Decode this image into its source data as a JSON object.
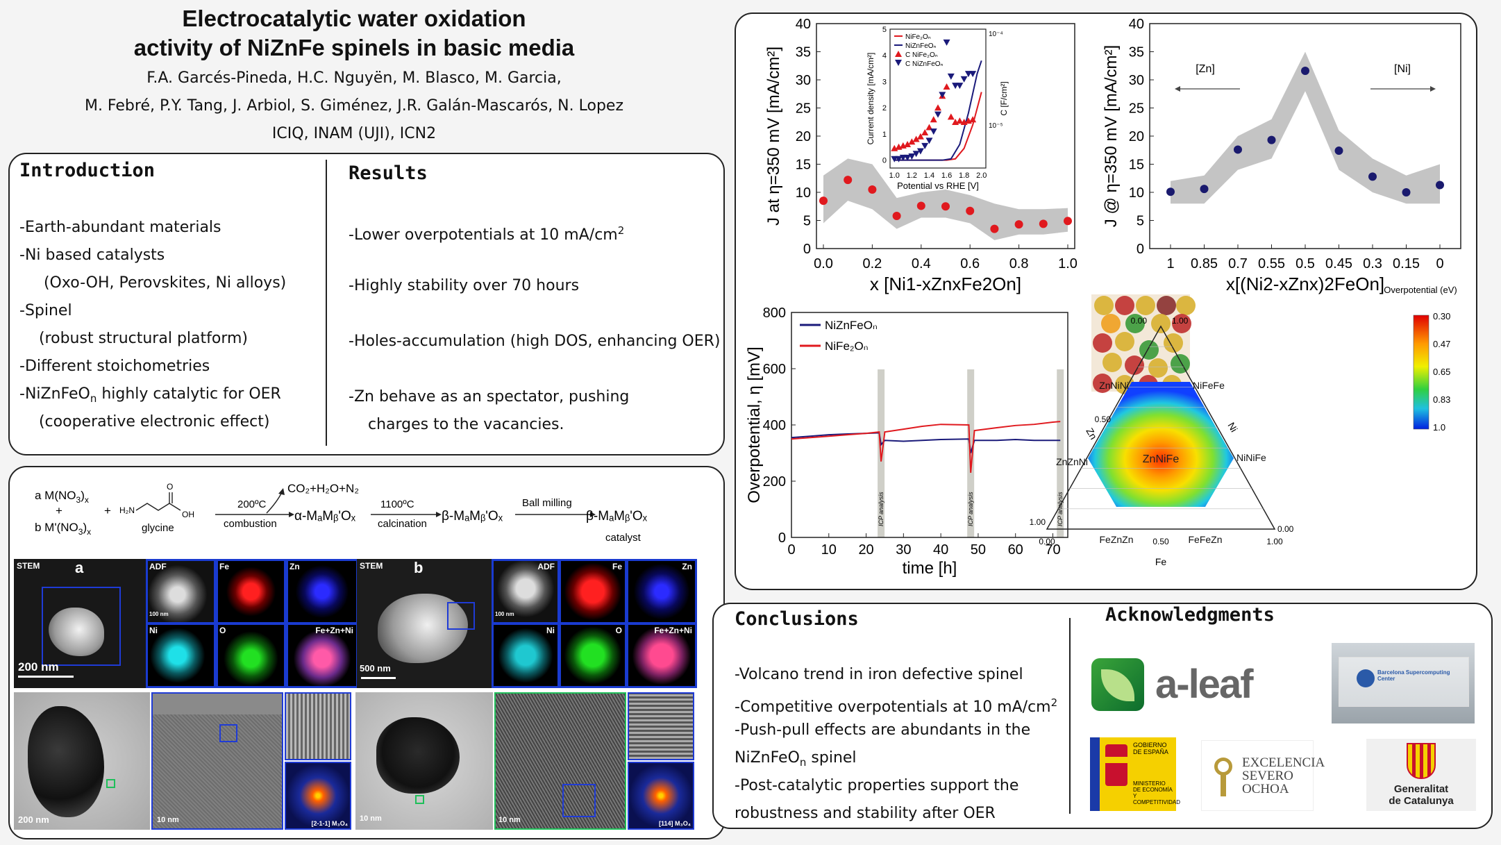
{
  "title": {
    "line1": "Electrocatalytic water oxidation",
    "line2": "activity of NiZnFe spinels in basic media"
  },
  "authors": {
    "line1": "F.A. Garcés-Pineda, H.C. Nguyën, M. Blasco, M. Garcia,",
    "line2": "M. Febré, P.Y. Tang, J. Arbiol, S. Giménez, J.R. Galán-Mascarós, N. Lopez",
    "line3": "ICIQ, INAM (UJI), ICN2"
  },
  "introduction": {
    "heading": "Introduction",
    "items": [
      "-Earth-abundant materials",
      "-Ni based catalysts",
      "     (Oxo-OH, Perovskites, Ni alloys)",
      "-Spinel",
      "    (robust structural platform)",
      "-Different stoichometries"
    ],
    "nizn_prefix": "-NiZnFeO",
    "nizn_sub": "n",
    "nizn_suffix": " highly catalytic for OER",
    "last": "    (cooperative electronic effect)"
  },
  "results": {
    "heading": "Results",
    "item1": "-Lower overpotentials at 10 mA/cm",
    "item1_sup": "2",
    "item2": "-Highly stability over 70 hours",
    "item3": "-Holes-accumulation (high DOS, enhancing OER)",
    "item4a": "-Zn behave as an spectator, pushing",
    "item4b": "    charges to the vacancies."
  },
  "synthesis": {
    "reagent_a": "a M(NO",
    "reagent_b": "b M'(NO",
    "plus": "+",
    "x": "x",
    "three": "3",
    "glycine": "glycine",
    "gly_h2n": "H₂N",
    "gly_oh": "OH",
    "gly_o": "O",
    "temp1": "200ºC",
    "step1": "combustion",
    "products": "CO₂+H₂O+N₂",
    "alpha": "α-MₐMᵦ'Oₓ",
    "temp2": "1100ºC",
    "step2": "calcination",
    "beta1": "β-MₐMᵦ'Oₓ",
    "step3": "Ball milling",
    "beta2": "β-MₐMᵦ'Oₓ",
    "catalyst": "catalyst"
  },
  "microscopy": {
    "stem": "STEM",
    "panel_a": "a",
    "panel_b": "b",
    "adf": "ADF",
    "fe": "Fe",
    "zn": "Zn",
    "ni": "Ni",
    "o": "O",
    "mix": "Fe+Zn+Ni",
    "scale_200": "200 nm",
    "scale_500": "500 nm",
    "scale_100": "100 nm",
    "scale_10": "10 nm",
    "fft_a": "[2-1-1] M₃O₄",
    "fft_b": "[114] M₃O₄"
  },
  "chart_data": [
    {
      "type": "scatter",
      "ylabel": "J at η=350 mV [mA/cm²]",
      "xlabel": "x [Ni1-xZnxFe2On]",
      "xlim": [
        0,
        1
      ],
      "ylim": [
        0,
        40
      ],
      "xticks": [
        "0.0",
        "0.2",
        "0.4",
        "0.6",
        "0.8",
        "1.0"
      ],
      "yticks": [
        "0",
        "5",
        "10",
        "15",
        "20",
        "25",
        "30",
        "35",
        "40"
      ],
      "x": [
        0.0,
        0.1,
        0.2,
        0.3,
        0.4,
        0.5,
        0.6,
        0.7,
        0.8,
        0.9,
        1.0
      ],
      "y": [
        8.5,
        12.2,
        10.5,
        5.8,
        7.6,
        7.5,
        6.7,
        3.5,
        4.3,
        4.4,
        4.9
      ],
      "color": "#e0191e"
    },
    {
      "type": "line",
      "inset": true,
      "xlabel": "Potential vs RHE [V]",
      "ylabel": "Current density [mA/cm²]",
      "ylabel_right": "C [F/cm²]",
      "xlim": [
        0.95,
        2.05
      ],
      "ylim": [
        -0.3,
        5
      ],
      "xticks": [
        "1.0",
        "1.2",
        "1.4",
        "1.6",
        "1.8",
        "2.0"
      ],
      "yticks": [
        "0",
        "1",
        "2",
        "3",
        "4",
        "5"
      ],
      "right_ticks": [
        "10⁻⁴",
        "10⁻⁵"
      ],
      "legend": [
        "NiFe₂Oₙ",
        "NiZnFeOₙ",
        "C NiFe₂Oₙ",
        "C NiZnFeOₙ"
      ],
      "series": [
        {
          "name": "NiFe₂Oₙ",
          "color": "#e0191e",
          "x": [
            1.0,
            1.6,
            1.7,
            1.8,
            1.9,
            2.0
          ],
          "y": [
            0,
            0,
            0.05,
            0.45,
            1.35,
            2.6
          ]
        },
        {
          "name": "NiZnFeOₙ",
          "color": "#1a1a7a",
          "x": [
            1.0,
            1.55,
            1.65,
            1.75,
            1.85,
            1.95,
            2.0
          ],
          "y": [
            0,
            0,
            0.05,
            0.6,
            1.8,
            3.3,
            3.8
          ]
        },
        {
          "name": "C NiFe₂Oₙ",
          "color": "#e0191e",
          "x": [
            1.0,
            1.05,
            1.1,
            1.15,
            1.2,
            1.25,
            1.3,
            1.35,
            1.4,
            1.45,
            1.5,
            1.55,
            1.6,
            1.65,
            1.7,
            1.75,
            1.8,
            1.85,
            1.9
          ],
          "y": [
            0.45,
            0.5,
            0.55,
            0.6,
            0.7,
            0.8,
            0.9,
            1.05,
            1.25,
            1.55,
            2.0,
            2.45,
            2.8,
            1.65,
            1.45,
            1.5,
            1.45,
            1.5,
            1.55
          ]
        },
        {
          "name": "C NiZnFeOₙ",
          "color": "#1a1a7a",
          "x": [
            1.0,
            1.05,
            1.1,
            1.15,
            1.2,
            1.25,
            1.3,
            1.35,
            1.4,
            1.45,
            1.5,
            1.55,
            1.6,
            1.65,
            1.7,
            1.75,
            1.8,
            1.85,
            1.9
          ],
          "y": [
            0.05,
            0.05,
            0.1,
            0.1,
            0.15,
            0.25,
            0.35,
            0.55,
            0.75,
            1.1,
            1.75,
            2.5,
            4.5,
            3.2,
            2.85,
            2.85,
            3.1,
            3.3,
            3.3
          ]
        }
      ]
    },
    {
      "type": "scatter",
      "ylabel": "J @ η=350 mV [mA/cm²]",
      "xlabel": "x[(Ni2-xZnx)2FeOn]",
      "ylim": [
        0,
        40
      ],
      "categories": [
        "1",
        "0.85",
        "0.7",
        "0.55",
        "0.5",
        "0.45",
        "0.3",
        "0.15",
        "0"
      ],
      "yticks": [
        "0",
        "5",
        "10",
        "15",
        "20",
        "25",
        "30",
        "35",
        "40"
      ],
      "values": [
        10.1,
        10.6,
        17.6,
        19.3,
        31.6,
        17.4,
        12.8,
        10.0,
        11.3
      ],
      "annotations": [
        "[Zn]",
        "[Ni]"
      ],
      "color": "#1a1a6e"
    },
    {
      "type": "line",
      "xlabel": "time [h]",
      "ylabel": "Overpotential, η [mV]",
      "xlim": [
        0,
        74
      ],
      "ylim": [
        0,
        800
      ],
      "xticks": [
        "0",
        "10",
        "20",
        "30",
        "40",
        "50",
        "60",
        "70"
      ],
      "yticks": [
        "0",
        "200",
        "400",
        "600",
        "800"
      ],
      "annotation": "ICP analysis",
      "legend": [
        "NiZnFeOₙ",
        "NiFe₂Oₙ"
      ],
      "series": [
        {
          "name": "NiZnFeOₙ",
          "color": "#1a1a7a",
          "x": [
            0,
            5,
            10,
            15,
            20,
            23.5,
            24,
            25,
            30,
            35,
            40,
            47.5,
            48,
            49,
            55,
            60,
            65,
            70,
            72
          ],
          "y": [
            355,
            360,
            365,
            368,
            370,
            372,
            330,
            345,
            342,
            345,
            348,
            350,
            300,
            345,
            345,
            348,
            345,
            345,
            345
          ]
        },
        {
          "name": "NiFe₂Oₙ",
          "color": "#e0191e",
          "x": [
            0,
            5,
            10,
            15,
            20,
            23.5,
            24,
            25,
            30,
            35,
            40,
            47.5,
            48,
            49,
            55,
            60,
            65,
            70,
            72
          ],
          "y": [
            350,
            355,
            360,
            365,
            370,
            375,
            270,
            375,
            385,
            395,
            402,
            400,
            230,
            380,
            390,
            398,
            402,
            410,
            412
          ]
        }
      ]
    },
    {
      "type": "heatmap",
      "title": "Overpotential (eV)",
      "colorbar_ticks": [
        "0.30",
        "0.47",
        "0.65",
        "0.83",
        "1.0"
      ],
      "corner_labels": [
        "0.00",
        "1.00",
        "0.50",
        "1.00",
        "0.00",
        "0.00",
        "0.50",
        "1.00"
      ],
      "axis_labels": [
        "Zn",
        "Ni",
        "Fe"
      ],
      "points": [
        "ZnNiNi",
        "NiFeFe",
        "ZnZnNi",
        "ZnNiFe",
        "NiNiFe",
        "FeZnZn",
        "FeFeZn"
      ]
    }
  ],
  "conclusions": {
    "heading": "Conclusions",
    "item1": "-Volcano trend in iron defective spinel",
    "item2": "-Competitive overpotentials at 10 mA/cm",
    "item2_sup": "2",
    "item3": "-Push-pull effects are abundants in the",
    "item4": "NiZnFeO",
    "item4_sub": "n",
    "item4_suffix": " spinel",
    "item5": "-Post-catalytic properties support the",
    "item6": "robustness and stability after OER"
  },
  "acknowledgments": {
    "heading": "Acknowledgments",
    "aleaf": "a-leaf",
    "bsc": "Barcelona Supercomputing Center",
    "gob1": "GOBIERNO",
    "gob2": "DE ESPAÑA",
    "min1": "MINISTERIO",
    "min2": "DE ECONOMÍA",
    "min3": "Y COMPETITIVIDAD",
    "sev1": "EXCELENCIA",
    "sev2": "SEVERO",
    "sev3": "OCHOA",
    "gen1": "Generalitat",
    "gen2": "de Catalunya"
  }
}
